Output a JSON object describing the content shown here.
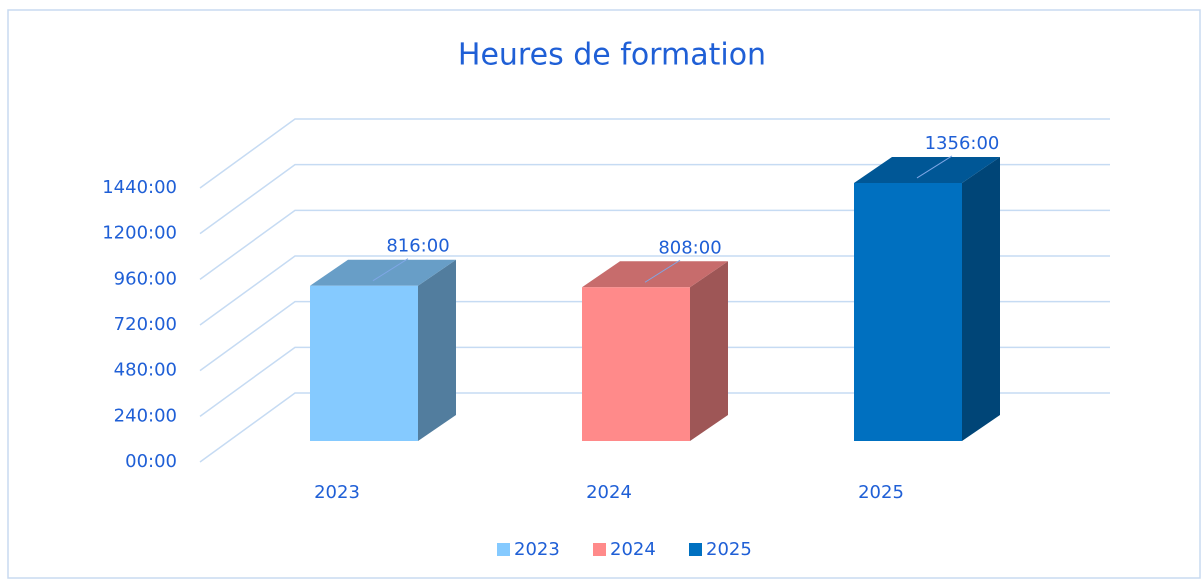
{
  "chart_data": {
    "type": "bar3d",
    "title": "Heures de formation",
    "categories": [
      "2023",
      "2024",
      "2025"
    ],
    "values": [
      816,
      808,
      1356
    ],
    "value_labels": [
      "816:00",
      "808:00",
      "1356:00"
    ],
    "colors": [
      "#85caff",
      "#ff8a8a",
      "#0070c0"
    ],
    "ylim": [
      0,
      1440
    ],
    "yticks": [
      {
        "value": 0,
        "label": "00:00"
      },
      {
        "value": 240,
        "label": "240:00"
      },
      {
        "value": 480,
        "label": "480:00"
      },
      {
        "value": 720,
        "label": "720:00"
      },
      {
        "value": 960,
        "label": "960:00"
      },
      {
        "value": 1200,
        "label": "1200:00"
      },
      {
        "value": 1440,
        "label": "1440:00"
      }
    ],
    "grid": true,
    "legend": "bottom"
  }
}
